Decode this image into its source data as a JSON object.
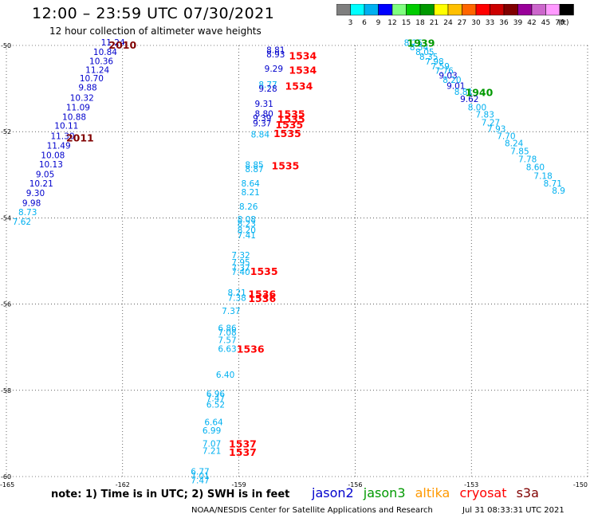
{
  "header": {
    "title": "12:00 – 23:59 UTC 07/30/2021",
    "subtitle": "12 hour collection of altimeter wave heights"
  },
  "colorbar": {
    "unit": "(ft)",
    "ticks": [
      "3",
      "6",
      "9",
      "12",
      "15",
      "18",
      "21",
      "24",
      "27",
      "30",
      "33",
      "36",
      "39",
      "42",
      "45",
      "70"
    ],
    "colors": [
      "#7f7f7f",
      "#00ffff",
      "#00b0f0",
      "#0000ff",
      "#7fff7f",
      "#00cc00",
      "#009900",
      "#ffff00",
      "#ffc000",
      "#ff6600",
      "#ff0000",
      "#cc0000",
      "#800000",
      "#990099",
      "#cc66cc",
      "#ff99ff",
      "#000000"
    ]
  },
  "footer": {
    "note": "note:  1) Time is in UTC;  2) SWH is in feet",
    "legend": [
      {
        "label": "jason2",
        "color": "#0000cc"
      },
      {
        "label": "jason3",
        "color": "#009900"
      },
      {
        "label": "altika",
        "color": "#ff9900"
      },
      {
        "label": "cryosat",
        "color": "#ff0000"
      },
      {
        "label": "s3a",
        "color": "#800000"
      }
    ],
    "credit": "NOAA/NESDIS Center for Satellite Applications and Research",
    "timestamp": "Jul 31 08:33:31 UTC 2021"
  },
  "chart_data": {
    "type": "scatter",
    "xlim": [
      -165,
      -150
    ],
    "ylim": [
      -60,
      -50
    ],
    "xticks": [
      -165,
      -162,
      -159,
      -156,
      -153,
      -150
    ],
    "yticks": [
      -50,
      -52,
      -54,
      -56,
      -58,
      -60
    ],
    "grid": true,
    "series_colors": {
      "cyan": "#00b0f0",
      "blue": "#0000cc",
      "green": "#009900",
      "red": "#ff0000",
      "darkred": "#800000"
    },
    "points": [
      {
        "x": -162.25,
        "y": -49.94,
        "v": "11.24",
        "c": "blue"
      },
      {
        "x": -162.45,
        "y": -50.17,
        "v": "10.84",
        "c": "blue"
      },
      {
        "x": -162.55,
        "y": -50.38,
        "v": "10.36",
        "c": "blue"
      },
      {
        "x": -162.65,
        "y": -50.58,
        "v": "11.24",
        "c": "blue"
      },
      {
        "x": -162.8,
        "y": -50.78,
        "v": "10.70",
        "c": "blue"
      },
      {
        "x": -162.9,
        "y": -50.99,
        "v": "9.88",
        "c": "blue"
      },
      {
        "x": -163.05,
        "y": -51.23,
        "v": "10.32",
        "c": "blue"
      },
      {
        "x": -163.15,
        "y": -51.45,
        "v": "11.09",
        "c": "blue"
      },
      {
        "x": -163.25,
        "y": -51.67,
        "v": "10.88",
        "c": "blue"
      },
      {
        "x": -163.45,
        "y": -51.88,
        "v": "10.11",
        "c": "blue"
      },
      {
        "x": -163.55,
        "y": -52.12,
        "v": "11.30",
        "c": "blue"
      },
      {
        "x": -163.65,
        "y": -52.34,
        "v": "11.49",
        "c": "blue"
      },
      {
        "x": -163.8,
        "y": -52.56,
        "v": "10.08",
        "c": "blue"
      },
      {
        "x": -163.85,
        "y": -52.77,
        "v": "10.13",
        "c": "blue"
      },
      {
        "x": -164.0,
        "y": -53.0,
        "v": "9.05",
        "c": "blue"
      },
      {
        "x": -164.1,
        "y": -53.22,
        "v": "10.21",
        "c": "blue"
      },
      {
        "x": -164.25,
        "y": -53.44,
        "v": "9.30",
        "c": "blue"
      },
      {
        "x": -164.35,
        "y": -53.67,
        "v": "9.98",
        "c": "blue"
      },
      {
        "x": -164.45,
        "y": -53.88,
        "v": "8.73",
        "c": "cyan"
      },
      {
        "x": -164.6,
        "y": -54.1,
        "v": "7.62",
        "c": "cyan"
      },
      {
        "x": -158.05,
        "y": -50.12,
        "v": "8.81",
        "c": "blue"
      },
      {
        "x": -158.05,
        "y": -50.22,
        "v": "8.93",
        "c": "blue"
      },
      {
        "x": -158.1,
        "y": -50.55,
        "v": "9.29",
        "c": "blue"
      },
      {
        "x": -158.25,
        "y": -50.92,
        "v": "8.77",
        "c": "cyan"
      },
      {
        "x": -158.25,
        "y": -51.02,
        "v": "9.28",
        "c": "blue"
      },
      {
        "x": -158.35,
        "y": -51.37,
        "v": "9.31",
        "c": "blue"
      },
      {
        "x": -158.35,
        "y": -51.6,
        "v": "8.80",
        "c": "blue"
      },
      {
        "x": -158.4,
        "y": -51.7,
        "v": "9.39",
        "c": "blue"
      },
      {
        "x": -158.4,
        "y": -51.82,
        "v": "9.37",
        "c": "blue"
      },
      {
        "x": -158.45,
        "y": -52.08,
        "v": "8.84",
        "c": "cyan"
      },
      {
        "x": -158.6,
        "y": -52.78,
        "v": "8.85",
        "c": "cyan"
      },
      {
        "x": -158.6,
        "y": -52.88,
        "v": "8.87",
        "c": "cyan"
      },
      {
        "x": -158.7,
        "y": -53.22,
        "v": "8.64",
        "c": "cyan"
      },
      {
        "x": -158.7,
        "y": -53.42,
        "v": "8.21",
        "c": "cyan"
      },
      {
        "x": -158.75,
        "y": -53.75,
        "v": "8.26",
        "c": "cyan"
      },
      {
        "x": -158.8,
        "y": -54.05,
        "v": "8.08",
        "c": "cyan"
      },
      {
        "x": -158.8,
        "y": -54.15,
        "v": "8.23",
        "c": "cyan"
      },
      {
        "x": -158.8,
        "y": -54.3,
        "v": "8.20",
        "c": "cyan"
      },
      {
        "x": -158.8,
        "y": -54.42,
        "v": "7.41",
        "c": "cyan"
      },
      {
        "x": -158.95,
        "y": -54.88,
        "v": "7.32",
        "c": "cyan"
      },
      {
        "x": -158.95,
        "y": -55.05,
        "v": "7.95",
        "c": "cyan"
      },
      {
        "x": -158.95,
        "y": -55.18,
        "v": "7.37",
        "c": "cyan"
      },
      {
        "x": -158.95,
        "y": -55.27,
        "v": "7.40",
        "c": "cyan"
      },
      {
        "x": -159.05,
        "y": -55.75,
        "v": "8.21",
        "c": "cyan"
      },
      {
        "x": -159.05,
        "y": -55.87,
        "v": "7.38",
        "c": "cyan"
      },
      {
        "x": -159.2,
        "y": -56.17,
        "v": "7.37",
        "c": "cyan"
      },
      {
        "x": -159.3,
        "y": -56.57,
        "v": "6.86",
        "c": "cyan"
      },
      {
        "x": -159.3,
        "y": -56.67,
        "v": "7.08",
        "c": "cyan"
      },
      {
        "x": -159.3,
        "y": -56.85,
        "v": "7.57",
        "c": "cyan"
      },
      {
        "x": -159.3,
        "y": -57.05,
        "v": "6.63",
        "c": "cyan"
      },
      {
        "x": -159.35,
        "y": -57.65,
        "v": "6.40",
        "c": "cyan"
      },
      {
        "x": -159.6,
        "y": -58.1,
        "v": "6.96",
        "c": "cyan"
      },
      {
        "x": -159.6,
        "y": -58.2,
        "v": "7.47",
        "c": "cyan"
      },
      {
        "x": -159.6,
        "y": -58.35,
        "v": "6.52",
        "c": "cyan"
      },
      {
        "x": -159.65,
        "y": -58.75,
        "v": "6.64",
        "c": "cyan"
      },
      {
        "x": -159.7,
        "y": -58.95,
        "v": "6.99",
        "c": "cyan"
      },
      {
        "x": -159.7,
        "y": -59.25,
        "v": "7.07",
        "c": "cyan"
      },
      {
        "x": -159.7,
        "y": -59.42,
        "v": "7.21",
        "c": "cyan"
      },
      {
        "x": -160.0,
        "y": -59.9,
        "v": "6.77",
        "c": "cyan"
      },
      {
        "x": -160.0,
        "y": -60.0,
        "v": "7.01",
        "c": "cyan"
      },
      {
        "x": -160.0,
        "y": -60.1,
        "v": "7.47",
        "c": "cyan"
      },
      {
        "x": -154.5,
        "y": -49.95,
        "v": "8.25",
        "c": "cyan"
      },
      {
        "x": -154.35,
        "y": -50.06,
        "v": "8.54",
        "c": "cyan"
      },
      {
        "x": -154.2,
        "y": -50.17,
        "v": "8.05",
        "c": "cyan"
      },
      {
        "x": -154.1,
        "y": -50.28,
        "v": "8.35",
        "c": "cyan"
      },
      {
        "x": -153.95,
        "y": -50.39,
        "v": "7.98",
        "c": "cyan"
      },
      {
        "x": -153.8,
        "y": -50.5,
        "v": "7.59",
        "c": "cyan"
      },
      {
        "x": -153.7,
        "y": -50.6,
        "v": "7.76",
        "c": "cyan"
      },
      {
        "x": -153.6,
        "y": -50.71,
        "v": "9.03",
        "c": "blue"
      },
      {
        "x": -153.5,
        "y": -50.81,
        "v": "8.20",
        "c": "cyan"
      },
      {
        "x": -153.4,
        "y": -50.95,
        "v": "9.01",
        "c": "blue"
      },
      {
        "x": -153.2,
        "y": -51.09,
        "v": "8.81",
        "c": "cyan"
      },
      {
        "x": -153.05,
        "y": -51.26,
        "v": "9.62",
        "c": "blue"
      },
      {
        "x": -152.85,
        "y": -51.45,
        "v": "8.00",
        "c": "cyan"
      },
      {
        "x": -152.65,
        "y": -51.62,
        "v": "7.83",
        "c": "cyan"
      },
      {
        "x": -152.5,
        "y": -51.8,
        "v": "7.27",
        "c": "cyan"
      },
      {
        "x": -152.35,
        "y": -51.95,
        "v": "7.93",
        "c": "cyan"
      },
      {
        "x": -152.1,
        "y": -52.12,
        "v": "7.70",
        "c": "cyan"
      },
      {
        "x": -151.9,
        "y": -52.28,
        "v": "8.24",
        "c": "cyan"
      },
      {
        "x": -151.75,
        "y": -52.47,
        "v": "7.85",
        "c": "cyan"
      },
      {
        "x": -151.55,
        "y": -52.65,
        "v": "7.78",
        "c": "cyan"
      },
      {
        "x": -151.35,
        "y": -52.84,
        "v": "8.60",
        "c": "cyan"
      },
      {
        "x": -151.15,
        "y": -53.04,
        "v": "7.18",
        "c": "cyan"
      },
      {
        "x": -150.9,
        "y": -53.22,
        "v": "8.71",
        "c": "cyan"
      },
      {
        "x": -150.75,
        "y": -53.38,
        "v": "8.9",
        "c": "cyan"
      }
    ],
    "time_labels": [
      {
        "x": -162.0,
        "y": -50.0,
        "v": "2010",
        "c": "darkred"
      },
      {
        "x": -163.1,
        "y": -52.15,
        "v": "2011",
        "c": "darkred"
      },
      {
        "x": -157.35,
        "y": -50.25,
        "v": "1534",
        "c": "red"
      },
      {
        "x": -157.35,
        "y": -50.58,
        "v": "1534",
        "c": "red"
      },
      {
        "x": -157.45,
        "y": -50.95,
        "v": "1534",
        "c": "red"
      },
      {
        "x": -157.65,
        "y": -51.6,
        "v": "1535",
        "c": "red"
      },
      {
        "x": -157.65,
        "y": -51.72,
        "v": "1535",
        "c": "red"
      },
      {
        "x": -157.7,
        "y": -51.85,
        "v": "1535",
        "c": "red"
      },
      {
        "x": -157.75,
        "y": -52.05,
        "v": "1535",
        "c": "red"
      },
      {
        "x": -157.8,
        "y": -52.8,
        "v": "1535",
        "c": "red"
      },
      {
        "x": -158.35,
        "y": -55.25,
        "v": "1535",
        "c": "red"
      },
      {
        "x": -158.4,
        "y": -55.78,
        "v": "1536",
        "c": "red"
      },
      {
        "x": -158.4,
        "y": -55.88,
        "v": "1536",
        "c": "red"
      },
      {
        "x": -158.7,
        "y": -57.05,
        "v": "1536",
        "c": "red"
      },
      {
        "x": -158.9,
        "y": -59.25,
        "v": "1537",
        "c": "red"
      },
      {
        "x": -158.9,
        "y": -59.45,
        "v": "1537",
        "c": "red"
      },
      {
        "x": -154.3,
        "y": -49.95,
        "v": "1939",
        "c": "green"
      },
      {
        "x": -152.8,
        "y": -51.1,
        "v": "1940",
        "c": "green"
      }
    ]
  }
}
